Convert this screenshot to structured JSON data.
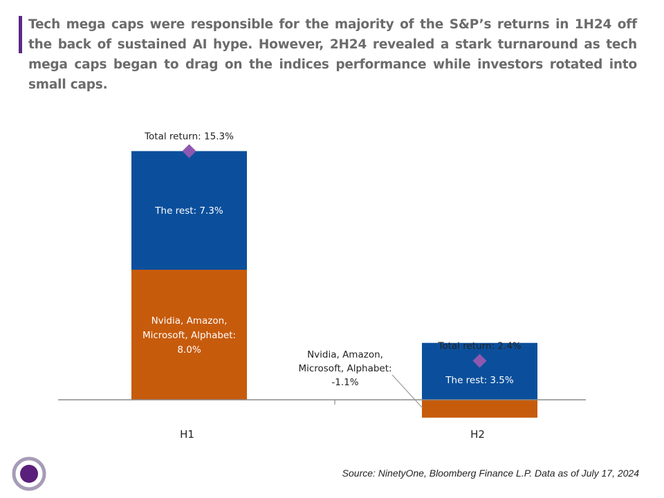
{
  "header": {
    "headline": "Tech mega caps were responsible for the majority of the S&P’s returns in 1H24 off  the back of sustained AI hype. However, 2H24 revealed a stark turnaround as tech mega caps began to drag on the indices performance while investors rotated into small caps."
  },
  "footer": {
    "source": "Source: NinetyOne, Bloomberg Finance L.P. Data as of July 17, 2024"
  },
  "colors": {
    "the_rest": "#0b4f9c",
    "mega_caps": "#c75b0c",
    "total_marker": "#8e58b0",
    "accent": "#5b2a86"
  },
  "chart_data": {
    "type": "bar",
    "stacked": true,
    "categories": [
      "H1",
      "H2"
    ],
    "series": [
      {
        "key": "mega_caps",
        "values": [
          8.0,
          -1.1
        ],
        "labels": [
          "Nvidia, Amazon,\nMicrosoft, Alphabet:\n8.0%",
          "Nvidia, Amazon,\nMicrosoft, Alphabet:\n-1.1%"
        ]
      },
      {
        "key": "the_rest",
        "values": [
          7.3,
          3.5
        ],
        "labels": [
          "The rest: 7.3%",
          "The rest: 3.5%"
        ]
      }
    ],
    "total_return": {
      "values": [
        15.3,
        2.4
      ],
      "labels": [
        "Total return: 15.3%",
        "Total return: 2.4%"
      ]
    },
    "ylim": [
      -1.1,
      16
    ],
    "grid": false,
    "legend": "none"
  }
}
